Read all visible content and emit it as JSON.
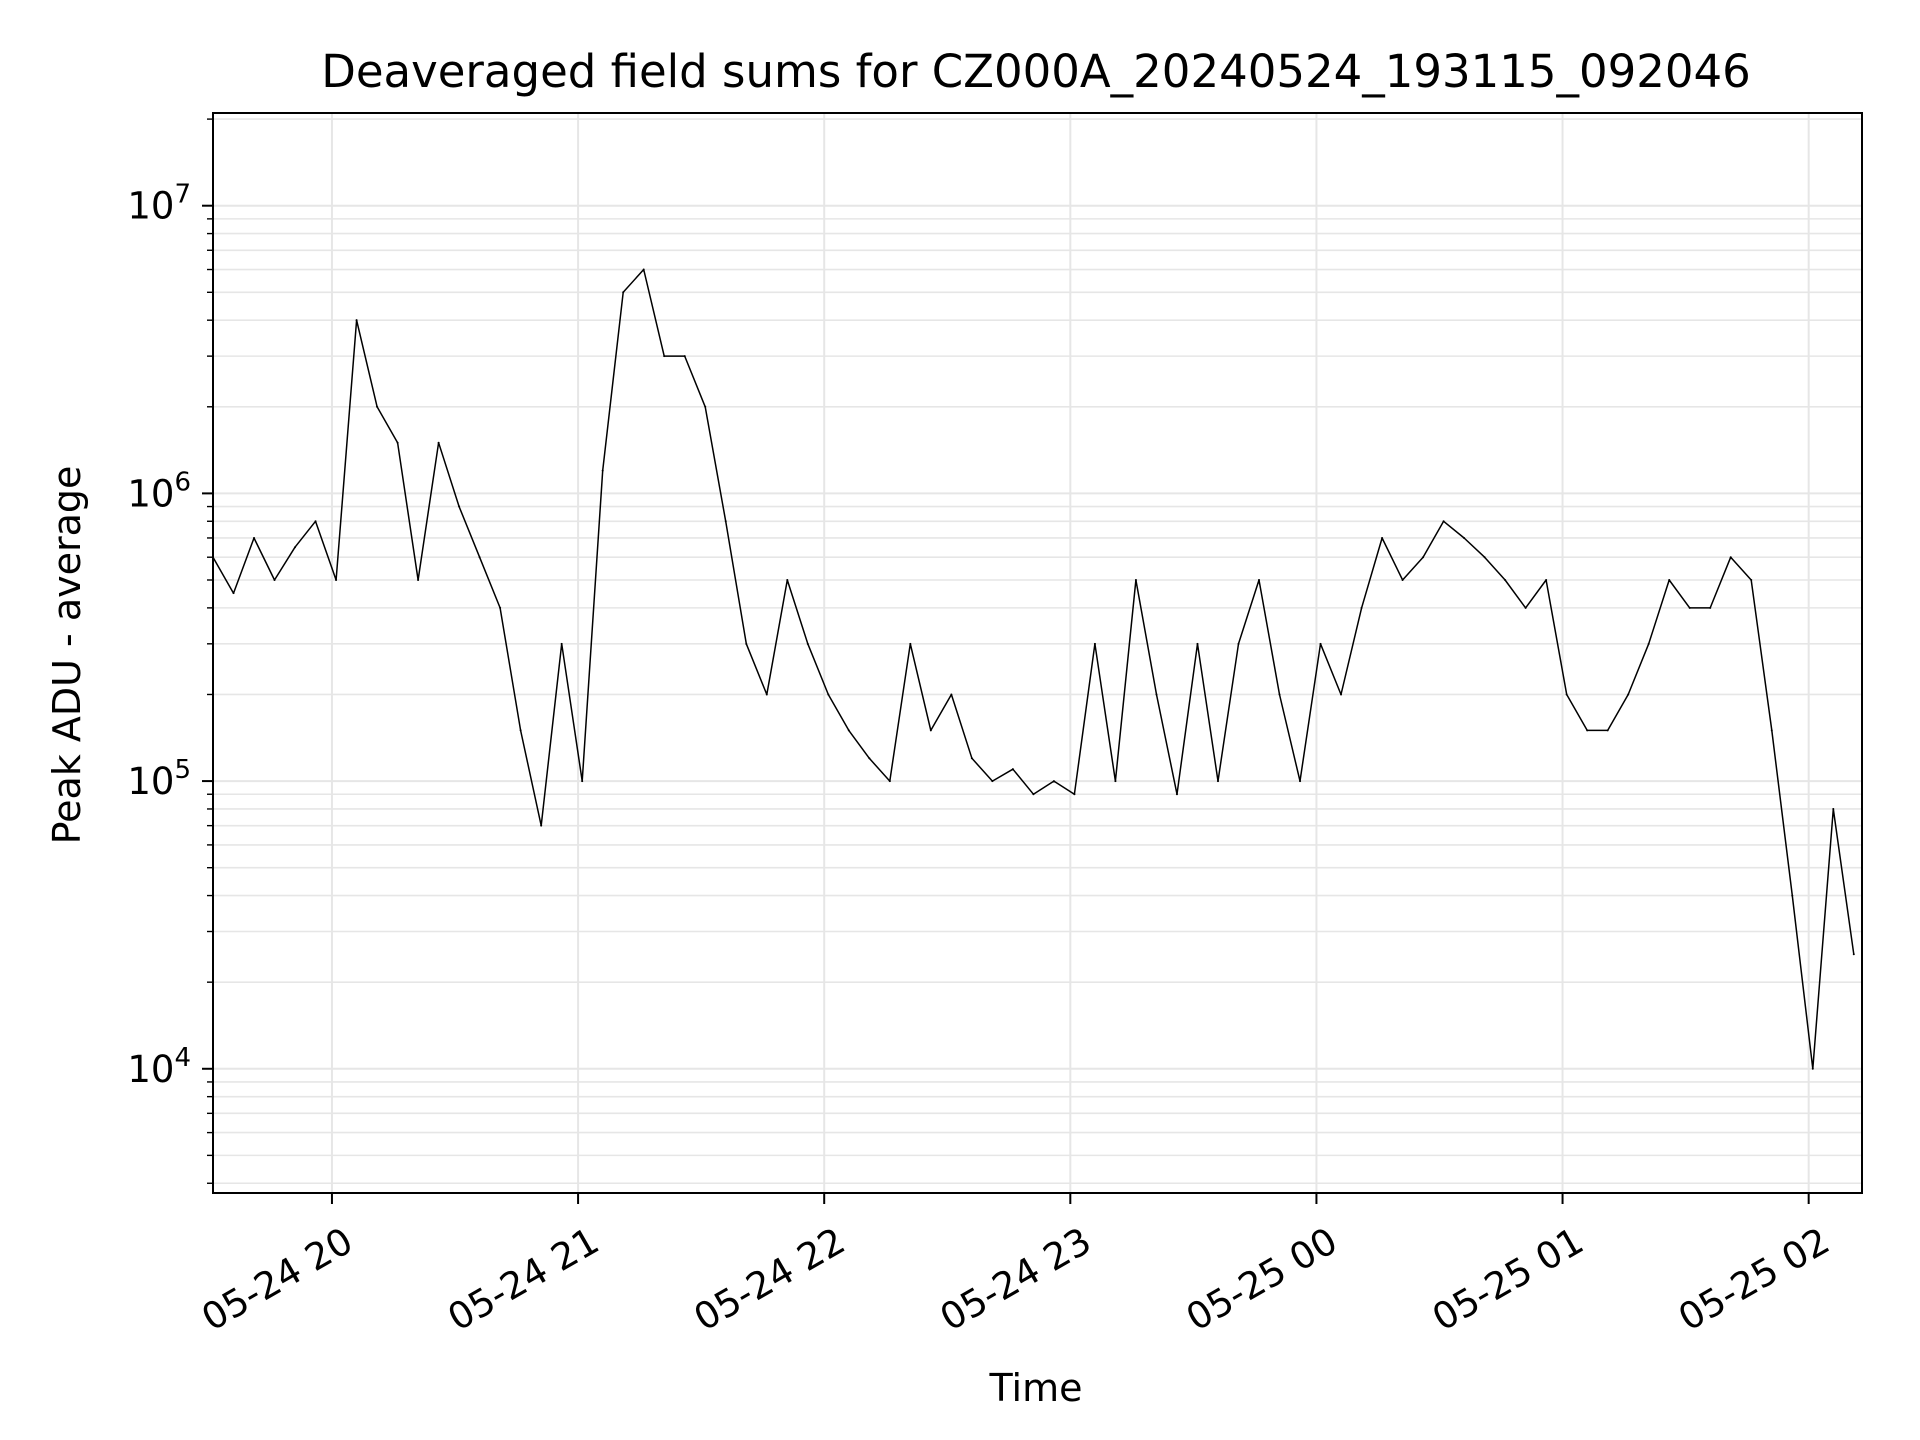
{
  "chart_data": {
    "type": "line",
    "title": "Deaveraged field sums for CZ000A_20240524_193115_092046",
    "xlabel": "Time",
    "ylabel": "Peak ADU - average",
    "y_scale": "log",
    "ylim": [
      3700,
      21000000
    ],
    "xlim": [
      "2024-05-24 19:31",
      "2024-05-25 02:13"
    ],
    "grid": true,
    "line_color": "#000000",
    "grid_color": "#e6e6e6",
    "x_ticks": [
      {
        "value": "2024-05-24 20:00",
        "label": "05-24 20"
      },
      {
        "value": "2024-05-24 21:00",
        "label": "05-24 21"
      },
      {
        "value": "2024-05-24 22:00",
        "label": "05-24 22"
      },
      {
        "value": "2024-05-24 23:00",
        "label": "05-24 23"
      },
      {
        "value": "2024-05-25 00:00",
        "label": "05-25 00"
      },
      {
        "value": "2024-05-25 01:00",
        "label": "05-25 01"
      },
      {
        "value": "2024-05-25 02:00",
        "label": "05-25 02"
      }
    ],
    "y_ticks": [
      {
        "value": 10000,
        "base": "10",
        "exp": "4"
      },
      {
        "value": 100000,
        "base": "10",
        "exp": "5"
      },
      {
        "value": 1000000,
        "base": "10",
        "exp": "6"
      },
      {
        "value": 10000000,
        "base": "10",
        "exp": "7"
      }
    ],
    "series": [
      {
        "x": [
          "2024-05-24 19:31",
          "2024-05-24 19:36",
          "2024-05-24 19:41",
          "2024-05-24 19:46",
          "2024-05-24 19:51",
          "2024-05-24 19:56",
          "2024-05-24 20:01",
          "2024-05-24 20:06",
          "2024-05-24 20:11",
          "2024-05-24 20:16",
          "2024-05-24 20:21",
          "2024-05-24 20:26",
          "2024-05-24 20:31",
          "2024-05-24 20:36",
          "2024-05-24 20:41",
          "2024-05-24 20:46",
          "2024-05-24 20:51",
          "2024-05-24 20:56",
          "2024-05-24 21:01",
          "2024-05-24 21:06",
          "2024-05-24 21:11",
          "2024-05-24 21:16",
          "2024-05-24 21:21",
          "2024-05-24 21:26",
          "2024-05-24 21:31",
          "2024-05-24 21:36",
          "2024-05-24 21:41",
          "2024-05-24 21:46",
          "2024-05-24 21:51",
          "2024-05-24 21:56",
          "2024-05-24 22:01",
          "2024-05-24 22:06",
          "2024-05-24 22:11",
          "2024-05-24 22:16",
          "2024-05-24 22:21",
          "2024-05-24 22:26",
          "2024-05-24 22:31",
          "2024-05-24 22:36",
          "2024-05-24 22:41",
          "2024-05-24 22:46",
          "2024-05-24 22:51",
          "2024-05-24 22:56",
          "2024-05-24 23:01",
          "2024-05-24 23:06",
          "2024-05-24 23:11",
          "2024-05-24 23:16",
          "2024-05-24 23:21",
          "2024-05-24 23:26",
          "2024-05-24 23:31",
          "2024-05-24 23:36",
          "2024-05-24 23:41",
          "2024-05-24 23:46",
          "2024-05-24 23:51",
          "2024-05-24 23:56",
          "2024-05-25 00:01",
          "2024-05-25 00:06",
          "2024-05-25 00:11",
          "2024-05-25 00:16",
          "2024-05-25 00:21",
          "2024-05-25 00:26",
          "2024-05-25 00:31",
          "2024-05-25 00:36",
          "2024-05-25 00:41",
          "2024-05-25 00:46",
          "2024-05-25 00:51",
          "2024-05-25 00:56",
          "2024-05-25 01:01",
          "2024-05-25 01:06",
          "2024-05-25 01:11",
          "2024-05-25 01:16",
          "2024-05-25 01:21",
          "2024-05-25 01:26",
          "2024-05-25 01:31",
          "2024-05-25 01:36",
          "2024-05-25 01:41",
          "2024-05-25 01:46",
          "2024-05-25 01:51",
          "2024-05-25 01:56",
          "2024-05-25 02:01",
          "2024-05-25 02:06",
          "2024-05-25 02:11"
        ],
        "y": [
          600000,
          450000,
          700000,
          500000,
          650000,
          800000,
          500000,
          4000000,
          2000000,
          1500000,
          500000,
          1500000,
          900000,
          600000,
          400000,
          150000,
          70000,
          300000,
          100000,
          1200000,
          5000000,
          6000000,
          3000000,
          3000000,
          2000000,
          800000,
          300000,
          200000,
          500000,
          300000,
          200000,
          150000,
          120000,
          100000,
          300000,
          150000,
          200000,
          120000,
          100000,
          110000,
          90000,
          100000,
          90000,
          300000,
          100000,
          500000,
          200000,
          90000,
          300000,
          100000,
          300000,
          500000,
          200000,
          100000,
          300000,
          200000,
          400000,
          700000,
          500000,
          600000,
          800000,
          700000,
          600000,
          500000,
          400000,
          500000,
          200000,
          150000,
          150000,
          200000,
          300000,
          500000,
          400000,
          400000,
          600000,
          500000,
          150000,
          40000,
          10000,
          80000,
          25000
        ]
      }
    ]
  }
}
